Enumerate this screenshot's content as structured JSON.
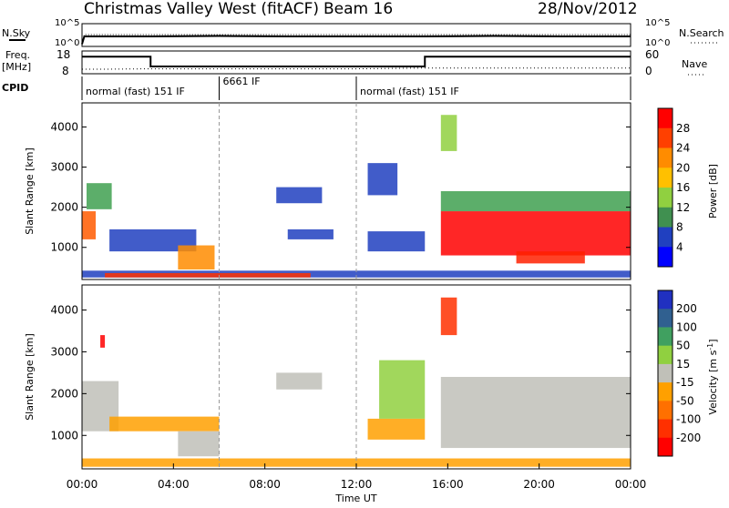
{
  "header": {
    "title": "Christmas Valley West (fitACF)",
    "beam": "Beam 16",
    "date": "28/Nov/2012"
  },
  "strip_labels": {
    "nsky": "N.Sky",
    "nsearch": "N.Search",
    "freq_line1": "Freq.",
    "freq_line2": "[MHz]",
    "nave": "Nave",
    "cpid": "CPID"
  },
  "cpid_segments": [
    {
      "label": "normal (fast) 151 IF",
      "start": 0,
      "end": 6
    },
    {
      "label": "6661 IF",
      "start": 6,
      "end": 12
    },
    {
      "label": "normal (fast) 151 IF",
      "start": 12,
      "end": 24
    }
  ],
  "chart_data": [
    {
      "type": "line",
      "name": "noise-strip",
      "yticks_left": [
        "10^5",
        "10^0"
      ],
      "yticks_right": [
        "10^5",
        "10^0"
      ],
      "series": [
        {
          "name": "N.Sky",
          "x": [
            0,
            0.1,
            3,
            6,
            9,
            12,
            15,
            18,
            21,
            24
          ],
          "values": [
            0.5,
            2.2,
            2.2,
            2.3,
            2.2,
            2.2,
            2.2,
            2.3,
            2.2,
            2.2
          ]
        },
        {
          "name": "N.Search",
          "x": [
            0,
            0.1,
            24
          ],
          "values": [
            0.5,
            2.6,
            2.6
          ]
        }
      ]
    },
    {
      "type": "line",
      "name": "freq-nave-strip",
      "yticks_left": [
        "18",
        "8"
      ],
      "yticks_right": [
        "60",
        "0"
      ],
      "series": [
        {
          "name": "Freq.",
          "x": [
            0,
            3,
            3,
            15,
            15,
            24
          ],
          "values": [
            15.5,
            15.5,
            11.2,
            11.2,
            15.5,
            15.5
          ]
        },
        {
          "name": "Nave",
          "x": [
            0,
            1,
            3,
            12,
            15,
            24
          ],
          "values": [
            12,
            12,
            13,
            13,
            15,
            15
          ]
        }
      ]
    },
    {
      "type": "heatmap",
      "name": "power",
      "xlabel": "",
      "ylabel": "Slant Range [km]",
      "xlim": [
        0,
        24
      ],
      "ylim": [
        200,
        4600
      ],
      "yticks": [
        1000,
        2000,
        3000,
        4000
      ],
      "colorbar": {
        "label": "Power [dB]",
        "ticks": [
          "28",
          "24",
          "20",
          "16",
          "12",
          "8",
          "4"
        ],
        "colors": [
          "#ff0000",
          "#ff4000",
          "#ff8c00",
          "#ffc000",
          "#90d040",
          "#409050",
          "#2040c0",
          "#0000ff"
        ]
      },
      "regions": [
        {
          "t0": 0,
          "t1": 0.6,
          "r0": 1200,
          "r1": 1900,
          "color": "#ff5a00"
        },
        {
          "t0": 0.2,
          "t1": 1.3,
          "r0": 1950,
          "r1": 2600,
          "color": "#40a050"
        },
        {
          "t0": 1.2,
          "t1": 5,
          "r0": 900,
          "r1": 1450,
          "color": "#2040c0"
        },
        {
          "t0": 4.2,
          "t1": 5.8,
          "r0": 450,
          "r1": 1050,
          "color": "#ff8c00"
        },
        {
          "t0": 0,
          "t1": 24,
          "r0": 250,
          "r1": 420,
          "color": "#2040c0"
        },
        {
          "t0": 1,
          "t1": 10,
          "r0": 250,
          "r1": 360,
          "color": "#ff3000"
        },
        {
          "t0": 8.5,
          "t1": 10.5,
          "r0": 2100,
          "r1": 2500,
          "color": "#2040c0"
        },
        {
          "t0": 9,
          "t1": 11,
          "r0": 1200,
          "r1": 1450,
          "color": "#2040c0"
        },
        {
          "t0": 12.5,
          "t1": 15,
          "r0": 900,
          "r1": 1400,
          "color": "#2040c0"
        },
        {
          "t0": 12.5,
          "t1": 13.8,
          "r0": 2300,
          "r1": 3100,
          "color": "#2040c0"
        },
        {
          "t0": 15.7,
          "t1": 24,
          "r0": 800,
          "r1": 1900,
          "color": "#ff0000"
        },
        {
          "t0": 15.7,
          "t1": 24,
          "r0": 1900,
          "r1": 2400,
          "color": "#40a050"
        },
        {
          "t0": 19,
          "t1": 22,
          "r0": 600,
          "r1": 900,
          "color": "#ff2000"
        },
        {
          "t0": 15.7,
          "t1": 16.4,
          "r0": 3400,
          "r1": 4300,
          "color": "#90d040"
        }
      ]
    },
    {
      "type": "heatmap",
      "name": "velocity",
      "xlabel": "Time UT",
      "ylabel": "Slant Range [km]",
      "xlim": [
        0,
        24
      ],
      "ylim": [
        200,
        4600
      ],
      "xticks": [
        "00:00",
        "04:00",
        "08:00",
        "12:00",
        "16:00",
        "20:00",
        "00:00"
      ],
      "yticks": [
        1000,
        2000,
        3000,
        4000
      ],
      "colorbar": {
        "label": "Velocity [m s",
        "label_exponent": "-1",
        "label_close": "]",
        "ticks": [
          "200",
          "100",
          "50",
          "15",
          "-15",
          "-50",
          "-100",
          "-200"
        ],
        "colors": [
          "#2030c0",
          "#306090",
          "#40a060",
          "#90d040",
          "#c0c0b8",
          "#ffa000",
          "#ff7000",
          "#ff3000",
          "#ff0000"
        ]
      },
      "regions": [
        {
          "t0": 0,
          "t1": 1.6,
          "r0": 1100,
          "r1": 2300,
          "color": "#c0c0b8"
        },
        {
          "t0": 0.8,
          "t1": 1.0,
          "r0": 3100,
          "r1": 3400,
          "color": "#ff0000"
        },
        {
          "t0": 1.2,
          "t1": 6,
          "r0": 1100,
          "r1": 1450,
          "color": "#ffa000"
        },
        {
          "t0": 4.2,
          "t1": 6,
          "r0": 500,
          "r1": 1100,
          "color": "#c0c0b8"
        },
        {
          "t0": 0,
          "t1": 24,
          "r0": 250,
          "r1": 450,
          "color": "#ffa000"
        },
        {
          "t0": 8.5,
          "t1": 10.5,
          "r0": 2100,
          "r1": 2500,
          "color": "#c0c0b8"
        },
        {
          "t0": 12.5,
          "t1": 15,
          "r0": 900,
          "r1": 1400,
          "color": "#ffa000"
        },
        {
          "t0": 13,
          "t1": 15,
          "r0": 1400,
          "r1": 2800,
          "color": "#90d040"
        },
        {
          "t0": 15.7,
          "t1": 24,
          "r0": 700,
          "r1": 2400,
          "color": "#c0c0b8"
        },
        {
          "t0": 15.7,
          "t1": 16.4,
          "r0": 3400,
          "r1": 4300,
          "color": "#ff3000"
        }
      ]
    }
  ]
}
